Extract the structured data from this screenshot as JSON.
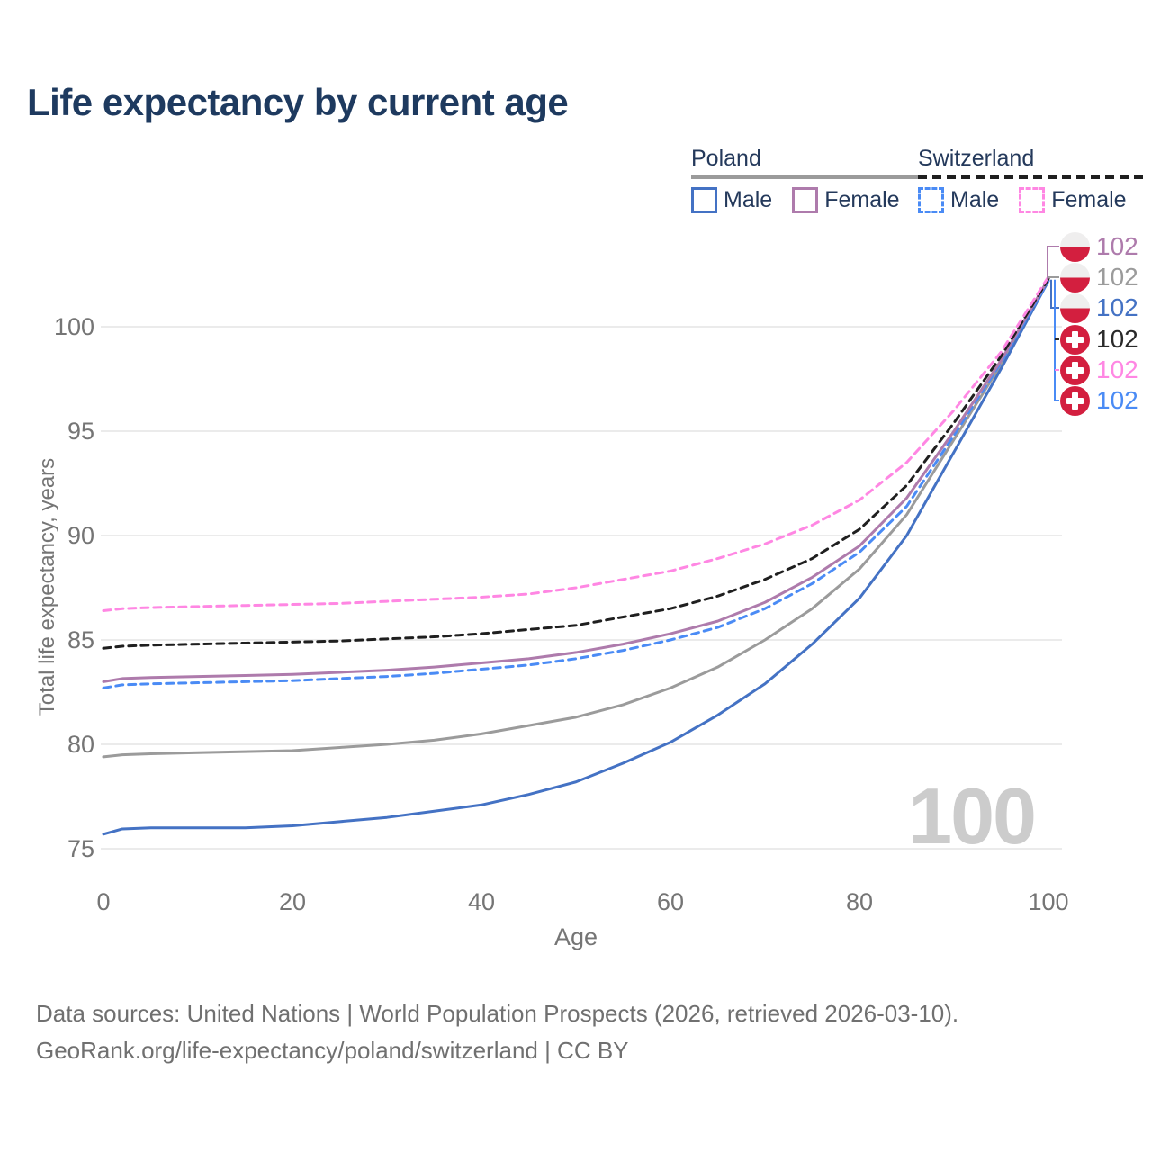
{
  "title": "Life expectancy by current age",
  "legend": {
    "groups": [
      {
        "label": "Poland",
        "line_style": "solid",
        "header_line_color": "#9b9b9b",
        "items": [
          {
            "label": "Male",
            "color": "#4472c4",
            "dashed": false
          },
          {
            "label": "Female",
            "color": "#ae7bac",
            "dashed": false
          }
        ]
      },
      {
        "label": "Switzerland",
        "line_style": "dashed",
        "header_line_color": "#1f1f1f",
        "items": [
          {
            "label": "Male",
            "color": "#4a8bf5",
            "dashed": true
          },
          {
            "label": "Female",
            "color": "#ff87e3",
            "dashed": true
          }
        ]
      }
    ]
  },
  "chart_data": {
    "type": "line",
    "title": "Life expectancy by current age",
    "xlabel": "Age",
    "ylabel": "Total life expectancy, years",
    "x_ticks": [
      0,
      20,
      40,
      60,
      80,
      100
    ],
    "y_ticks": [
      75,
      80,
      85,
      90,
      95,
      100
    ],
    "xlim": [
      0,
      100
    ],
    "ylim": [
      74,
      103.5
    ],
    "grid": "horizontal",
    "gridline_color": "#ebebeb",
    "series": [
      {
        "name": "Poland Both sexes",
        "country": "Poland",
        "sex": "Both",
        "color": "#9b9b9b",
        "dashed": false,
        "points": [
          [
            0,
            79.4
          ],
          [
            2,
            79.5
          ],
          [
            5,
            79.55
          ],
          [
            10,
            79.6
          ],
          [
            15,
            79.65
          ],
          [
            20,
            79.7
          ],
          [
            25,
            79.85
          ],
          [
            30,
            80.0
          ],
          [
            35,
            80.2
          ],
          [
            40,
            80.5
          ],
          [
            45,
            80.9
          ],
          [
            50,
            81.3
          ],
          [
            55,
            81.9
          ],
          [
            60,
            82.7
          ],
          [
            65,
            83.7
          ],
          [
            70,
            85.0
          ],
          [
            75,
            86.5
          ],
          [
            80,
            88.4
          ],
          [
            85,
            91.0
          ],
          [
            90,
            94.6
          ],
          [
            95,
            98.2
          ],
          [
            100,
            102.2
          ]
        ]
      },
      {
        "name": "Poland Male",
        "country": "Poland",
        "sex": "Male",
        "color": "#4472c4",
        "dashed": false,
        "points": [
          [
            0,
            75.7
          ],
          [
            2,
            75.95
          ],
          [
            5,
            76.0
          ],
          [
            10,
            76.0
          ],
          [
            15,
            76.0
          ],
          [
            20,
            76.1
          ],
          [
            25,
            76.3
          ],
          [
            30,
            76.5
          ],
          [
            35,
            76.8
          ],
          [
            40,
            77.1
          ],
          [
            45,
            77.6
          ],
          [
            50,
            78.2
          ],
          [
            55,
            79.1
          ],
          [
            60,
            80.1
          ],
          [
            65,
            81.4
          ],
          [
            70,
            82.9
          ],
          [
            75,
            84.8
          ],
          [
            80,
            87.0
          ],
          [
            85,
            90.0
          ],
          [
            90,
            94.0
          ],
          [
            95,
            98.0
          ],
          [
            100,
            102.2
          ]
        ]
      },
      {
        "name": "Switzerland Male",
        "country": "Switzerland",
        "sex": "Male",
        "color": "#4a8bf5",
        "dashed": true,
        "points": [
          [
            0,
            82.7
          ],
          [
            2,
            82.85
          ],
          [
            5,
            82.9
          ],
          [
            10,
            82.95
          ],
          [
            15,
            83.0
          ],
          [
            20,
            83.05
          ],
          [
            25,
            83.15
          ],
          [
            30,
            83.25
          ],
          [
            35,
            83.4
          ],
          [
            40,
            83.6
          ],
          [
            45,
            83.8
          ],
          [
            50,
            84.1
          ],
          [
            55,
            84.5
          ],
          [
            60,
            85.0
          ],
          [
            65,
            85.6
          ],
          [
            70,
            86.5
          ],
          [
            75,
            87.7
          ],
          [
            80,
            89.2
          ],
          [
            85,
            91.4
          ],
          [
            90,
            94.8
          ],
          [
            95,
            98.3
          ],
          [
            100,
            102.2
          ]
        ]
      },
      {
        "name": "Poland Female",
        "country": "Poland",
        "sex": "Female",
        "color": "#ae7bac",
        "dashed": false,
        "points": [
          [
            0,
            83.0
          ],
          [
            2,
            83.15
          ],
          [
            5,
            83.2
          ],
          [
            10,
            83.25
          ],
          [
            15,
            83.3
          ],
          [
            20,
            83.35
          ],
          [
            25,
            83.45
          ],
          [
            30,
            83.55
          ],
          [
            35,
            83.7
          ],
          [
            40,
            83.9
          ],
          [
            45,
            84.1
          ],
          [
            50,
            84.4
          ],
          [
            55,
            84.8
          ],
          [
            60,
            85.3
          ],
          [
            65,
            85.9
          ],
          [
            70,
            86.8
          ],
          [
            75,
            88.0
          ],
          [
            80,
            89.5
          ],
          [
            85,
            91.8
          ],
          [
            90,
            95.0
          ],
          [
            95,
            98.4
          ],
          [
            100,
            102.3
          ]
        ]
      },
      {
        "name": "Switzerland Both sexes",
        "country": "Switzerland",
        "sex": "Both",
        "color": "#1f1f1f",
        "dashed": true,
        "points": [
          [
            0,
            84.6
          ],
          [
            2,
            84.7
          ],
          [
            5,
            84.75
          ],
          [
            10,
            84.8
          ],
          [
            15,
            84.85
          ],
          [
            20,
            84.9
          ],
          [
            25,
            84.95
          ],
          [
            30,
            85.05
          ],
          [
            35,
            85.15
          ],
          [
            40,
            85.3
          ],
          [
            45,
            85.5
          ],
          [
            50,
            85.7
          ],
          [
            55,
            86.1
          ],
          [
            60,
            86.5
          ],
          [
            65,
            87.1
          ],
          [
            70,
            87.9
          ],
          [
            75,
            88.9
          ],
          [
            80,
            90.3
          ],
          [
            85,
            92.4
          ],
          [
            90,
            95.4
          ],
          [
            95,
            98.6
          ],
          [
            100,
            102.3
          ]
        ]
      },
      {
        "name": "Switzerland Female",
        "country": "Switzerland",
        "sex": "Female",
        "color": "#ff87e3",
        "dashed": true,
        "points": [
          [
            0,
            86.4
          ],
          [
            2,
            86.5
          ],
          [
            5,
            86.55
          ],
          [
            10,
            86.6
          ],
          [
            15,
            86.65
          ],
          [
            20,
            86.7
          ],
          [
            25,
            86.75
          ],
          [
            30,
            86.85
          ],
          [
            35,
            86.95
          ],
          [
            40,
            87.05
          ],
          [
            45,
            87.2
          ],
          [
            50,
            87.5
          ],
          [
            55,
            87.9
          ],
          [
            60,
            88.3
          ],
          [
            65,
            88.9
          ],
          [
            70,
            89.6
          ],
          [
            75,
            90.5
          ],
          [
            80,
            91.7
          ],
          [
            85,
            93.5
          ],
          [
            90,
            96.0
          ],
          [
            95,
            98.8
          ],
          [
            100,
            102.4
          ]
        ]
      }
    ]
  },
  "end_labels": [
    {
      "series": "Poland Female",
      "flag": "poland",
      "value": "102",
      "color": "#ae7bac"
    },
    {
      "series": "Poland Both sexes",
      "flag": "poland",
      "value": "102",
      "color": "#9b9b9b"
    },
    {
      "series": "Poland Male",
      "flag": "poland",
      "value": "102",
      "color": "#4472c4"
    },
    {
      "series": "Switzerland Both sexes",
      "flag": "switzerland",
      "value": "102",
      "color": "#2a2a2a"
    },
    {
      "series": "Switzerland Female",
      "flag": "switzerland",
      "value": "102",
      "color": "#ff87e3"
    },
    {
      "series": "Switzerland Male",
      "flag": "switzerland",
      "value": "102",
      "color": "#4a8bf5"
    }
  ],
  "watermark": "100",
  "footer": {
    "line1": "Data sources: United Nations | World Population Prospects (2026, retrieved 2026-03-10).",
    "line2": "GeoRank.org/life-expectancy/poland/switzerland | CC BY"
  }
}
